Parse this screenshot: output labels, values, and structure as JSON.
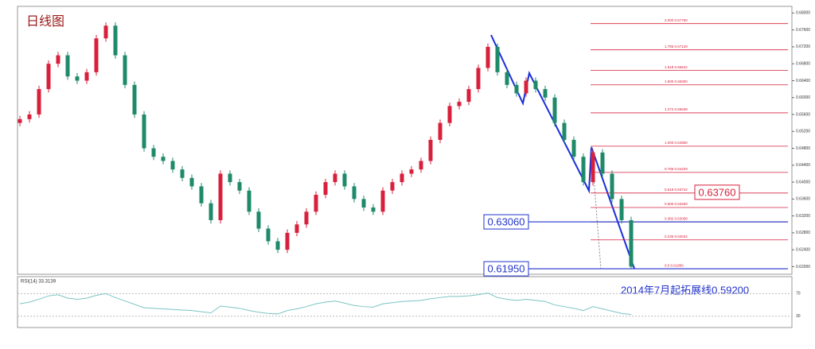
{
  "chart_data": [
    {
      "type": "candlestick",
      "title": "日线图",
      "open": [
        0.654,
        0.6549,
        0.656,
        0.662,
        0.668,
        0.67,
        0.665,
        0.664,
        0.666,
        0.674,
        0.677,
        0.67,
        0.663,
        0.656,
        0.648,
        0.646,
        0.645,
        0.643,
        0.641,
        0.639,
        0.635,
        0.631,
        0.642,
        0.64,
        0.638,
        0.633,
        0.629,
        0.626,
        0.624,
        0.628,
        0.63,
        0.633,
        0.637,
        0.64,
        0.642,
        0.639,
        0.636,
        0.634,
        0.633,
        0.638,
        0.64,
        0.642,
        0.643,
        0.645,
        0.65,
        0.654,
        0.658,
        0.659,
        0.662,
        0.667,
        0.672,
        0.666,
        0.663,
        0.661,
        0.664,
        0.662,
        0.66,
        0.654,
        0.65,
        0.646,
        0.64,
        0.647,
        0.642,
        0.636,
        0.631
      ],
      "high": [
        0.6557,
        0.6568,
        0.6628,
        0.6688,
        0.6708,
        0.6708,
        0.6658,
        0.6668,
        0.6748,
        0.6778,
        0.6778,
        0.6708,
        0.6638,
        0.6568,
        0.6488,
        0.6468,
        0.6458,
        0.6438,
        0.6418,
        0.6398,
        0.6358,
        0.6428,
        0.6428,
        0.6408,
        0.6388,
        0.6338,
        0.6298,
        0.6268,
        0.6288,
        0.6308,
        0.6338,
        0.6378,
        0.6408,
        0.6428,
        0.6428,
        0.6398,
        0.6368,
        0.6348,
        0.6388,
        0.6408,
        0.6428,
        0.6438,
        0.6458,
        0.6508,
        0.6548,
        0.6588,
        0.6598,
        0.6628,
        0.6678,
        0.6728,
        0.6728,
        0.6668,
        0.6638,
        0.6648,
        0.6648,
        0.6628,
        0.6608,
        0.6548,
        0.6508,
        0.6468,
        0.6478,
        0.6478,
        0.6428,
        0.6368,
        0.6318
      ],
      "low": [
        0.6532,
        0.6541,
        0.6552,
        0.6612,
        0.6672,
        0.6642,
        0.6632,
        0.6632,
        0.6652,
        0.6732,
        0.6692,
        0.6622,
        0.6552,
        0.6472,
        0.6452,
        0.6442,
        0.6422,
        0.6402,
        0.6382,
        0.6342,
        0.6302,
        0.6302,
        0.6392,
        0.6372,
        0.6322,
        0.6282,
        0.6252,
        0.6232,
        0.6232,
        0.6272,
        0.6292,
        0.6322,
        0.6362,
        0.6392,
        0.6382,
        0.6352,
        0.6332,
        0.6322,
        0.6322,
        0.6372,
        0.6392,
        0.6412,
        0.6422,
        0.6442,
        0.6492,
        0.6532,
        0.6572,
        0.6582,
        0.6612,
        0.6662,
        0.6652,
        0.6622,
        0.6602,
        0.6602,
        0.6612,
        0.6592,
        0.6532,
        0.6492,
        0.6452,
        0.6392,
        0.6392,
        0.6412,
        0.6352,
        0.6302,
        0.6195
      ],
      "close": [
        0.6549,
        0.656,
        0.662,
        0.668,
        0.67,
        0.665,
        0.664,
        0.666,
        0.674,
        0.677,
        0.67,
        0.663,
        0.656,
        0.648,
        0.646,
        0.645,
        0.643,
        0.641,
        0.639,
        0.635,
        0.631,
        0.642,
        0.64,
        0.638,
        0.633,
        0.629,
        0.626,
        0.624,
        0.628,
        0.63,
        0.633,
        0.637,
        0.64,
        0.642,
        0.639,
        0.636,
        0.634,
        0.633,
        0.638,
        0.64,
        0.642,
        0.643,
        0.645,
        0.65,
        0.654,
        0.658,
        0.659,
        0.662,
        0.667,
        0.672,
        0.666,
        0.663,
        0.661,
        0.664,
        0.662,
        0.66,
        0.654,
        0.65,
        0.646,
        0.64,
        0.647,
        0.642,
        0.636,
        0.631,
        0.62
      ],
      "up_color": "#d8203c",
      "down_color": "#1f8a6a",
      "ylim": [
        0.6182,
        0.6812
      ],
      "yticks": [
        {
          "value": 0.62,
          "label": "0.62000"
        },
        {
          "value": 0.624,
          "label": "0.62400"
        },
        {
          "value": 0.628,
          "label": "0.62800"
        },
        {
          "value": 0.632,
          "label": "0.63200"
        },
        {
          "value": 0.636,
          "label": "0.63600"
        },
        {
          "value": 0.64,
          "label": "0.64000"
        },
        {
          "value": 0.644,
          "label": "0.64400"
        },
        {
          "value": 0.648,
          "label": "0.64800"
        },
        {
          "value": 0.652,
          "label": "0.65200"
        },
        {
          "value": 0.656,
          "label": "0.65600"
        },
        {
          "value": 0.66,
          "label": "0.66000"
        },
        {
          "value": 0.664,
          "label": "0.66400"
        },
        {
          "value": 0.668,
          "label": "0.66800"
        },
        {
          "value": 0.672,
          "label": "0.67200"
        },
        {
          "value": 0.676,
          "label": "0.67600"
        },
        {
          "value": 0.68,
          "label": "0.68000"
        }
      ],
      "fib_color": "#d8203c",
      "fib_levels": [
        {
          "value": 0.6775,
          "label": "2.000 0.67750"
        },
        {
          "value": 0.67129,
          "label": "1.786 0.67129"
        },
        {
          "value": 0.66642,
          "label": "1.618 0.66642"
        },
        {
          "value": 0.663,
          "label": "1.500 0.66300"
        },
        {
          "value": 0.65639,
          "label": "1.272 0.65639"
        },
        {
          "value": 0.6485,
          "label": "1.000 0.64850"
        },
        {
          "value": 0.64229,
          "label": "0.786 0.64229"
        },
        {
          "value": 0.63742,
          "label": "0.618 0.63742"
        },
        {
          "value": 0.634,
          "label": "0.500 0.63400"
        },
        {
          "value": 0.63058,
          "label": "0.382 0.63058"
        },
        {
          "value": 0.62634,
          "label": "0.236 0.62634"
        },
        {
          "value": 0.6195,
          "label": "0.0 0.61950"
        }
      ],
      "levels": [
        {
          "value": 0.6306,
          "label": "0.63060"
        },
        {
          "value": 0.6195,
          "label": "0.61950"
        }
      ],
      "level_color": "#2233cc",
      "callout": {
        "value": 0.6376,
        "label": "0.63760",
        "color": "#d8203c"
      },
      "note": "2014年7月起拓展线0.59200"
    },
    {
      "type": "line",
      "title": "RSI(14) 33.3139",
      "color": "#7cc4c4",
      "values": [
        52,
        55,
        60,
        66,
        68,
        62,
        60,
        62,
        67,
        70,
        63,
        57,
        51,
        45,
        44,
        43,
        42,
        41,
        40,
        38,
        36,
        48,
        46,
        44,
        40,
        37,
        35,
        34,
        40,
        43,
        47,
        52,
        55,
        57,
        53,
        49,
        47,
        46,
        52,
        54,
        56,
        57,
        58,
        61,
        63,
        65,
        65,
        66,
        68,
        71,
        63,
        60,
        58,
        60,
        58,
        56,
        50,
        47,
        44,
        40,
        47,
        43,
        39,
        35,
        33
      ],
      "ylim": [
        10,
        100
      ],
      "yticks": [
        70,
        30
      ]
    }
  ]
}
